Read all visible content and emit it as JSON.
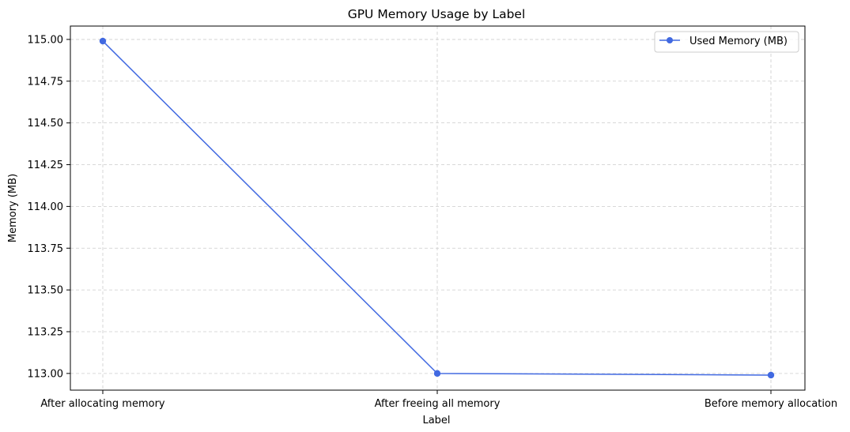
{
  "chart_data": {
    "type": "line",
    "title": "GPU Memory Usage by Label",
    "xlabel": "Label",
    "ylabel": "Memory (MB)",
    "categories": [
      "After allocating memory",
      "After freeing all memory",
      "Before memory allocation"
    ],
    "series": [
      {
        "name": "Used Memory (MB)",
        "values": [
          114.99,
          113.0,
          112.99
        ],
        "color": "#4169e1"
      }
    ],
    "yticks": [
      "113.00",
      "113.25",
      "113.50",
      "113.75",
      "114.00",
      "114.25",
      "114.50",
      "114.75",
      "115.00"
    ],
    "ylim": [
      112.9,
      115.08
    ],
    "grid": true,
    "legend_position": "top-right"
  }
}
